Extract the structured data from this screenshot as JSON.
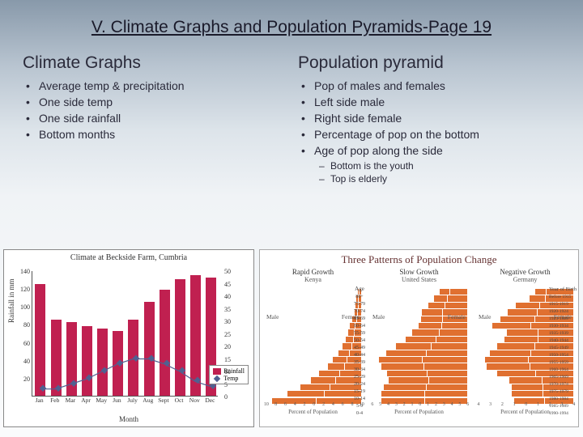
{
  "title": "V. Climate Graphs and Population Pyramids-Page 19",
  "left": {
    "heading": "Climate  Graphs",
    "bullets": [
      "Average temp & precipitation",
      "One side temp",
      "One side rainfall",
      "Bottom months"
    ]
  },
  "right": {
    "heading": "Population pyramid",
    "bullets": [
      "Pop of males and females",
      "Left side male",
      "Right side female",
      "Percentage of pop on the bottom",
      "Age of pop along the side"
    ],
    "sub_bullets": [
      "Bottom is the youth",
      "Top is elderly"
    ]
  },
  "climate_chart": {
    "title": "Climate at Beckside Farm, Cumbria",
    "type": "combo-bar-line",
    "months": [
      "Jan",
      "Feb",
      "Mar",
      "Apr",
      "May",
      "Jun",
      "July",
      "Aug",
      "Sept",
      "Oct",
      "Nov",
      "Dec"
    ],
    "rainfall": [
      125,
      85,
      82,
      78,
      75,
      72,
      85,
      105,
      118,
      130,
      135,
      132
    ],
    "temp": [
      3,
      3,
      5,
      7,
      10,
      13,
      15,
      15,
      13,
      10,
      6,
      4
    ],
    "rain_color": "#c02050",
    "temp_color": "#506090",
    "y_left_label": "Rainfall in mm",
    "y_left_ticks": [
      20,
      40,
      60,
      80,
      100,
      120,
      140
    ],
    "y_right_ticks": [
      0,
      5,
      10,
      15,
      20,
      25,
      30,
      35,
      40,
      45,
      50
    ],
    "x_label": "Month",
    "legend": {
      "rain": "Rainfall",
      "temp": "Temp"
    },
    "bg": "#ffffff"
  },
  "pyramids": {
    "title": "Three Patterns of Population Change",
    "fill_color": "#e07030",
    "x_label": "Percent of Population",
    "age_header": "Age",
    "year_header": "Year of Birth",
    "male_label": "Male",
    "female_label": "Female",
    "ages": [
      "80+",
      "75-79",
      "70-74",
      "65-69",
      "60-64",
      "55-59",
      "50-54",
      "45-49",
      "40-44",
      "35-39",
      "30-34",
      "25-29",
      "20-24",
      "15-19",
      "10-14",
      "5-9",
      "0-4"
    ],
    "years": [
      "Before 1915",
      "1915-1919",
      "1920-1924",
      "1925-1929",
      "1930-1934",
      "1935-1939",
      "1940-1944",
      "1945-1949",
      "1950-1954",
      "1955-1959",
      "1960-1964",
      "1965-1969",
      "1970-1974",
      "1975-1979",
      "1980-1984",
      "1985-1989",
      "1990-1994"
    ],
    "panels": [
      {
        "subtitle": "Rapid Growth",
        "country": "Kenya",
        "x_ticks": [
          10,
          8,
          6,
          4,
          2,
          0,
          2,
          4,
          6,
          8,
          10
        ],
        "male": [
          0.2,
          0.3,
          0.4,
          0.5,
          0.7,
          0.9,
          1.1,
          1.3,
          1.6,
          2.0,
          2.5,
          3.0,
          3.8,
          4.6,
          5.6,
          6.8,
          8.2
        ],
        "female": [
          0.3,
          0.4,
          0.5,
          0.6,
          0.8,
          1.0,
          1.2,
          1.4,
          1.7,
          2.1,
          2.6,
          3.1,
          3.9,
          4.7,
          5.7,
          6.9,
          8.3
        ]
      },
      {
        "subtitle": "Slow Growth",
        "country": "United States",
        "x_ticks": [
          6,
          5,
          4,
          3,
          2,
          1,
          0,
          1,
          2,
          3,
          4,
          5,
          6
        ],
        "male": [
          0.8,
          1.1,
          1.4,
          1.7,
          1.8,
          1.9,
          2.2,
          2.5,
          2.9,
          3.3,
          3.6,
          3.5,
          3.3,
          3.3,
          3.5,
          3.6,
          3.6
        ],
        "female": [
          1.4,
          1.6,
          1.8,
          2.0,
          2.0,
          2.1,
          2.3,
          2.6,
          3.0,
          3.4,
          3.7,
          3.6,
          3.3,
          3.2,
          3.4,
          3.5,
          3.5
        ]
      },
      {
        "subtitle": "Negative Growth",
        "country": "Germany",
        "x_ticks": [
          4,
          3,
          2,
          1,
          0,
          1,
          2,
          3,
          4
        ],
        "male": [
          0.9,
          1.3,
          1.9,
          2.4,
          2.8,
          3.2,
          2.6,
          2.8,
          3.1,
          3.4,
          3.6,
          3.6,
          3.2,
          2.7,
          2.6,
          2.6,
          2.5
        ],
        "female": [
          2.2,
          2.3,
          2.8,
          3.0,
          3.2,
          3.5,
          2.9,
          2.9,
          3.2,
          3.5,
          3.7,
          3.6,
          3.1,
          2.6,
          2.5,
          2.5,
          2.4
        ]
      }
    ]
  },
  "colors": {
    "title": "#1a1a2a",
    "text": "#2a2a3a"
  }
}
